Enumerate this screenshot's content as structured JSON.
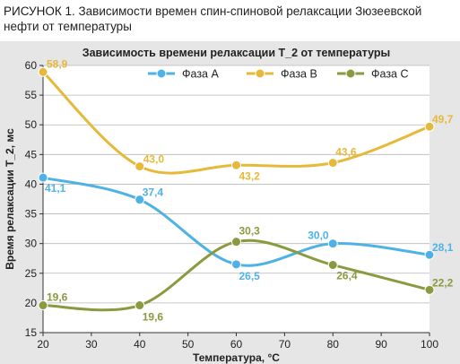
{
  "figure": {
    "label": "РИСУНОК 1.",
    "caption": "Зависимости времен спин-спиновой релаксации Зюзеевской нефти от температуры"
  },
  "chart_data": {
    "type": "line",
    "title": "Зависимость времени релаксации Т_2 от температуры",
    "xlabel": "Температура, °C",
    "ylabel": "Время релаксации Т_2, мс",
    "xlim": [
      20,
      100
    ],
    "ylim": [
      15,
      60
    ],
    "xticks": [
      20,
      30,
      40,
      50,
      60,
      70,
      80,
      90,
      100
    ],
    "yticks": [
      15,
      20,
      25,
      30,
      35,
      40,
      45,
      50,
      55,
      60
    ],
    "grid": "horizontal",
    "legend_position": "top",
    "x": [
      20,
      40,
      60,
      80,
      100
    ],
    "series": [
      {
        "name": "Фаза A",
        "color": "#4eb2e6",
        "values": [
          41.1,
          37.4,
          26.5,
          30.0,
          28.1
        ],
        "labels": [
          "41,1",
          "37,4",
          "26,5",
          "30,0",
          "28,1"
        ]
      },
      {
        "name": "Фаза B",
        "color": "#e6b93a",
        "values": [
          58.9,
          43.0,
          43.2,
          43.6,
          49.7
        ],
        "labels": [
          "58,9",
          "43,0",
          "43,2",
          "43,6",
          "49,7"
        ]
      },
      {
        "name": "Фаза C",
        "color": "#8a9a3e",
        "values": [
          19.6,
          19.6,
          30.3,
          26.4,
          22.2
        ],
        "labels": [
          "19,6",
          "19,6",
          "30,3",
          "26,4",
          "22,2"
        ]
      }
    ]
  }
}
